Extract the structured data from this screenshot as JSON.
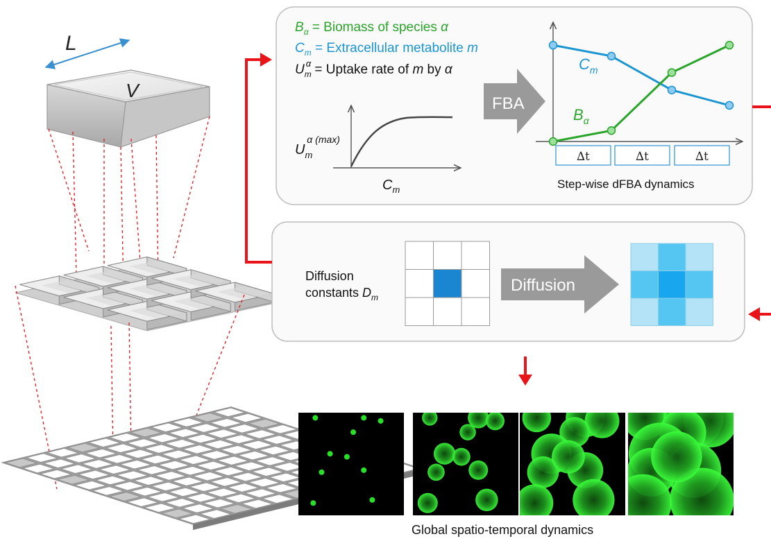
{
  "cube": {
    "length_label": "L",
    "volume_label": "V"
  },
  "fba_box": {
    "legend": [
      {
        "symbol": "B",
        "sub": "α",
        "text": " = Biomass of species ",
        "var": "α",
        "color": "#2aa52a"
      },
      {
        "symbol": "C",
        "sub": "m",
        "text": " = Extracellular metabolite ",
        "var": "m",
        "color": "#1a95d2"
      },
      {
        "symbol": "U",
        "sub": "m",
        "sup": "α",
        "text": " = Uptake rate of ",
        "var": "m",
        "text2": " by ",
        "var2": "α",
        "color": "#111111"
      }
    ],
    "uptake_plot": {
      "ylabel": "U",
      "ylabel_sub": "m",
      "ylabel_sup": "α (max)",
      "xlabel": "C",
      "xlabel_sub": "m"
    },
    "arrow_label": "FBA",
    "dynamics_plot": {
      "series": [
        {
          "name": "C",
          "sub": "m",
          "color": "#1a95d2",
          "values": [
            0.88,
            0.78,
            0.47,
            0.33
          ]
        },
        {
          "name": "B",
          "sub": "α",
          "color": "#2aa52a",
          "values": [
            0.0,
            0.1,
            0.63,
            0.88
          ]
        }
      ],
      "dt_labels": [
        "∆t",
        "∆t",
        "∆t"
      ],
      "caption": "Step-wise dFBA dynamics"
    }
  },
  "diffusion_box": {
    "label_line1": "Diffusion",
    "label_line2": "constants ",
    "label_symbol": "D",
    "label_sub": "m",
    "arrow_label": "Diffusion",
    "colors": {
      "center": "#1a85d0",
      "grid_before": "#ffffff",
      "diff_center": "#18a6ee",
      "diff_edge": "#55c6f2",
      "diff_corner": "#b4e3f8"
    }
  },
  "panels": {
    "colony_growth": [
      0.1,
      0.35,
      0.65,
      1.0
    ],
    "caption": "Global spatio-temporal dynamics"
  },
  "colors": {
    "arrow_red": "#e8141a",
    "grid_gray": "#bdbdbd"
  }
}
